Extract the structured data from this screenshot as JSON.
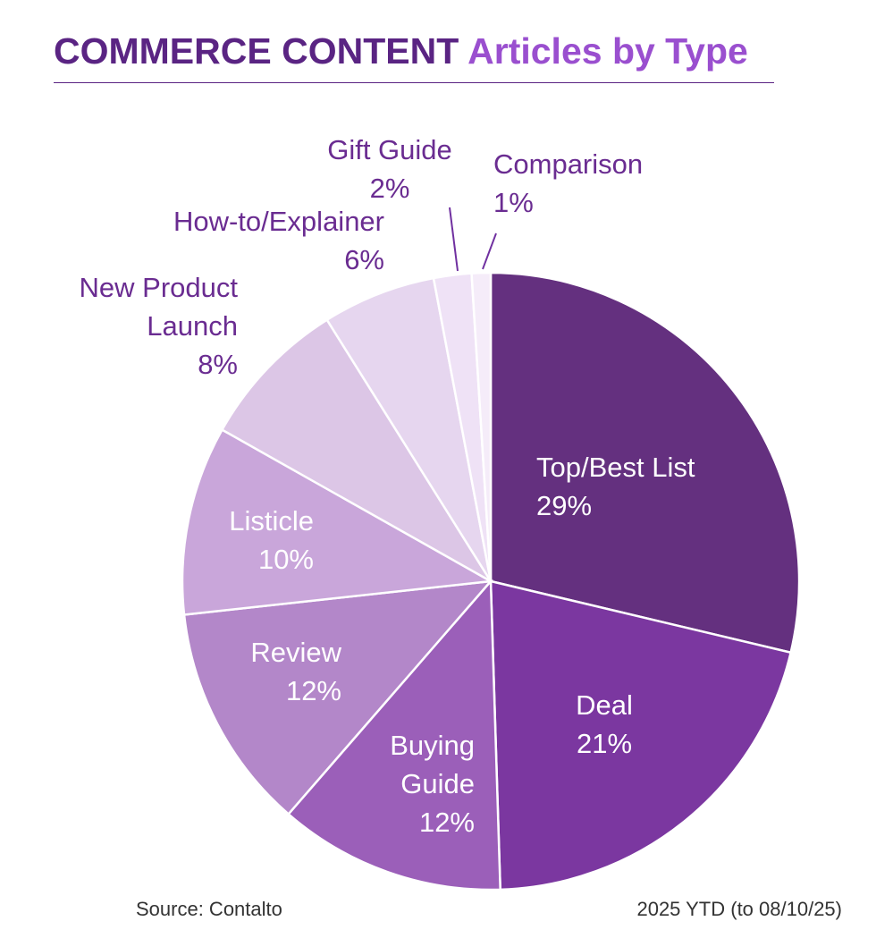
{
  "chart_data": {
    "type": "pie",
    "title": "COMMERCE CONTENT",
    "subtitle": "Articles by Type",
    "categories": [
      "Top/Best List",
      "Deal",
      "Buying Guide",
      "Review",
      "Listicle",
      "New Product Launch",
      "How-to/Explainer",
      "Gift Guide",
      "Comparison"
    ],
    "values": [
      29,
      21,
      12,
      12,
      10,
      8,
      6,
      2,
      1
    ],
    "value_labels": [
      "29%",
      "21%",
      "12%",
      "12%",
      "10%",
      "8%",
      "6%",
      "2%",
      "1%"
    ],
    "colors": [
      "#64307f",
      "#7b37a0",
      "#9b5fb9",
      "#b387c9",
      "#c9a6da",
      "#dcc6e6",
      "#e6d6ef",
      "#efe2f6",
      "#f5ecf9"
    ],
    "source": "Source: Contalto",
    "note": "2025 YTD (to 08/10/25)"
  }
}
